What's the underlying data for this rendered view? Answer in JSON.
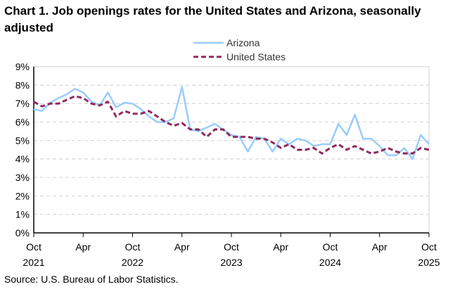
{
  "chart_data": {
    "type": "line",
    "title": "Chart 1. Job openings rates for the United States and Arizona, seasonally adjusted",
    "source": "Source: U.S. Bureau of Labor Statistics.",
    "x_start": "2021-10",
    "x_end": "2025-10",
    "x_ticks": [
      {
        "month": "Oct",
        "year": "2021",
        "index": 0
      },
      {
        "month": "Apr",
        "year": "",
        "index": 6
      },
      {
        "month": "Oct",
        "year": "2022",
        "index": 12
      },
      {
        "month": "Apr",
        "year": "",
        "index": 18
      },
      {
        "month": "Oct",
        "year": "2023",
        "index": 24
      },
      {
        "month": "Apr",
        "year": "",
        "index": 30
      },
      {
        "month": "Oct",
        "year": "2024",
        "index": 36
      },
      {
        "month": "Apr",
        "year": "",
        "index": 42
      },
      {
        "month": "Oct",
        "year": "2025",
        "index": 48
      }
    ],
    "y_ticks": [
      "0%",
      "1%",
      "2%",
      "3%",
      "4%",
      "5%",
      "6%",
      "7%",
      "8%",
      "9%"
    ],
    "ylim": [
      0,
      9
    ],
    "grid": true,
    "legend_placement": "top-center",
    "series": [
      {
        "name": "Arizona",
        "color": "#99ccff",
        "style": "solid",
        "values": [
          6.7,
          6.6,
          7.05,
          7.3,
          7.5,
          7.8,
          7.6,
          7.1,
          6.9,
          7.6,
          6.8,
          7.05,
          7.0,
          6.7,
          6.3,
          6.0,
          6.0,
          6.2,
          7.9,
          5.6,
          5.5,
          5.7,
          5.9,
          5.6,
          5.3,
          5.2,
          4.4,
          5.2,
          5.1,
          4.4,
          5.1,
          4.8,
          5.1,
          5.0,
          4.7,
          4.8,
          4.8,
          5.9,
          5.3,
          6.4,
          5.1,
          5.1,
          4.7,
          4.2,
          4.2,
          4.6,
          4.0,
          5.3,
          4.8
        ]
      },
      {
        "name": "United States",
        "color": "#8e2a5e",
        "style": "dashed",
        "values": [
          7.1,
          6.85,
          7.0,
          7.0,
          7.2,
          7.4,
          7.3,
          7.0,
          6.9,
          7.1,
          6.3,
          6.6,
          6.45,
          6.45,
          6.6,
          6.3,
          6.0,
          5.8,
          5.95,
          5.6,
          5.6,
          5.2,
          5.6,
          5.6,
          5.2,
          5.2,
          5.2,
          5.1,
          5.1,
          4.9,
          4.6,
          4.8,
          4.5,
          4.5,
          4.6,
          4.3,
          4.6,
          4.8,
          4.5,
          4.7,
          4.5,
          4.3,
          4.4,
          4.6,
          4.4,
          4.3,
          4.3,
          4.6,
          4.5
        ]
      }
    ]
  }
}
